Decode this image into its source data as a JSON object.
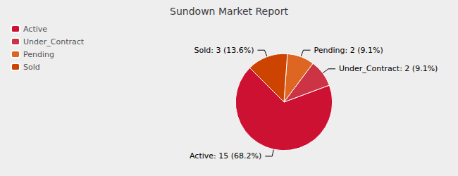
{
  "chart_data": {
    "type": "pie",
    "title": "Sundown Market Report",
    "categories": [
      "Active",
      "Under_Contract",
      "Pending",
      "Sold"
    ],
    "values": [
      15,
      2,
      2,
      3
    ],
    "value_labels": [
      "Active: 15 (68.2%)",
      "Under_Contract: 2 (9.1%)",
      "Pending: 2 (9.1%)",
      "Sold: 3 (13.6%)"
    ],
    "colors": [
      "#cc1133",
      "#cc3344",
      "#dd6622",
      "#cc4400"
    ],
    "legend": "upper left"
  }
}
